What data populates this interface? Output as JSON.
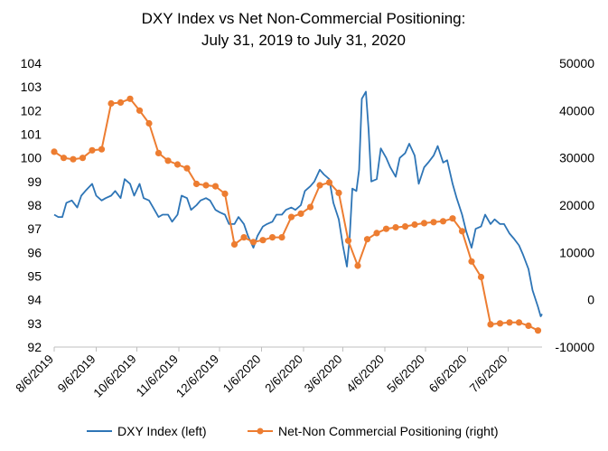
{
  "chart_data": {
    "type": "line",
    "title_line1": "DXY Index vs Net Non-Commercial Positioning:",
    "title_line2": "July 31, 2019 to July 31, 2020",
    "left_axis": {
      "ticks": [
        "104",
        "103",
        "102",
        "101",
        "100",
        "99",
        "98",
        "97",
        "96",
        "95",
        "94",
        "93",
        "92"
      ],
      "ylim": [
        92,
        104
      ]
    },
    "right_axis": {
      "ticks": [
        "50000",
        "40000",
        "30000",
        "20000",
        "10000",
        "0",
        "-10000"
      ],
      "ylim": [
        -10000,
        50000
      ]
    },
    "x_tick_labels": [
      "8/6/2019",
      "9/6/2019",
      "10/6/2019",
      "11/6/2019",
      "12/6/2019",
      "1/6/2020",
      "2/6/2020",
      "3/6/2020",
      "4/6/2020",
      "5/6/2020",
      "6/6/2020",
      "7/6/2020"
    ],
    "x_range": [
      "2019-08-06",
      "2020-07-31"
    ],
    "colors": {
      "dxy": "#2e75b6",
      "positioning": "#ed7d31"
    },
    "series": [
      {
        "name": "DXY Index (left)",
        "axis": "left",
        "x": [
          "2019-08-06",
          "2019-08-09",
          "2019-08-12",
          "2019-08-15",
          "2019-08-19",
          "2019-08-23",
          "2019-08-26",
          "2019-08-29",
          "2019-09-03",
          "2019-09-06",
          "2019-09-10",
          "2019-09-13",
          "2019-09-17",
          "2019-09-20",
          "2019-09-24",
          "2019-09-27",
          "2019-10-01",
          "2019-10-04",
          "2019-10-08",
          "2019-10-11",
          "2019-10-15",
          "2019-10-18",
          "2019-10-22",
          "2019-10-25",
          "2019-10-29",
          "2019-11-01",
          "2019-11-05",
          "2019-11-08",
          "2019-11-12",
          "2019-11-15",
          "2019-11-19",
          "2019-11-22",
          "2019-11-26",
          "2019-11-29",
          "2019-12-03",
          "2019-12-06",
          "2019-12-10",
          "2019-12-13",
          "2019-12-17",
          "2019-12-20",
          "2019-12-24",
          "2019-12-27",
          "2019-12-31",
          "2020-01-03",
          "2020-01-07",
          "2020-01-10",
          "2020-01-14",
          "2020-01-17",
          "2020-01-21",
          "2020-01-24",
          "2020-01-28",
          "2020-01-31",
          "2020-02-04",
          "2020-02-07",
          "2020-02-11",
          "2020-02-14",
          "2020-02-18",
          "2020-02-21",
          "2020-02-25",
          "2020-02-28",
          "2020-03-03",
          "2020-03-06",
          "2020-03-09",
          "2020-03-11",
          "2020-03-13",
          "2020-03-16",
          "2020-03-18",
          "2020-03-20",
          "2020-03-23",
          "2020-03-25",
          "2020-03-27",
          "2020-03-31",
          "2020-04-03",
          "2020-04-07",
          "2020-04-10",
          "2020-04-14",
          "2020-04-17",
          "2020-04-21",
          "2020-04-24",
          "2020-04-28",
          "2020-05-01",
          "2020-05-05",
          "2020-05-08",
          "2020-05-12",
          "2020-05-15",
          "2020-05-19",
          "2020-05-22",
          "2020-05-26",
          "2020-05-29",
          "2020-06-02",
          "2020-06-05",
          "2020-06-09",
          "2020-06-12",
          "2020-06-16",
          "2020-06-19",
          "2020-06-23",
          "2020-06-26",
          "2020-06-30",
          "2020-07-03",
          "2020-07-07",
          "2020-07-10",
          "2020-07-14",
          "2020-07-17",
          "2020-07-21",
          "2020-07-24",
          "2020-07-28",
          "2020-07-30",
          "2020-07-31"
        ],
        "values": [
          97.6,
          97.5,
          97.5,
          98.1,
          98.2,
          97.9,
          98.4,
          98.6,
          98.9,
          98.4,
          98.2,
          98.3,
          98.4,
          98.6,
          98.3,
          99.1,
          98.9,
          98.4,
          98.9,
          98.3,
          98.2,
          97.9,
          97.5,
          97.6,
          97.6,
          97.3,
          97.6,
          98.4,
          98.3,
          97.8,
          98.0,
          98.2,
          98.3,
          98.2,
          97.8,
          97.7,
          97.6,
          97.2,
          97.2,
          97.5,
          97.2,
          96.7,
          96.2,
          96.7,
          97.1,
          97.2,
          97.3,
          97.6,
          97.6,
          97.8,
          97.9,
          97.8,
          98.0,
          98.6,
          98.8,
          99.0,
          99.5,
          99.3,
          99.1,
          98.1,
          97.4,
          96.3,
          95.4,
          96.6,
          98.7,
          98.6,
          99.5,
          102.5,
          102.8,
          101.2,
          99.0,
          99.1,
          100.4,
          100.0,
          99.6,
          99.2,
          100.0,
          100.2,
          100.6,
          100.1,
          98.9,
          99.6,
          99.8,
          100.1,
          100.5,
          99.8,
          99.9,
          98.9,
          98.3,
          97.6,
          96.9,
          96.2,
          97.0,
          97.1,
          97.6,
          97.2,
          97.4,
          97.2,
          97.2,
          96.8,
          96.6,
          96.3,
          95.9,
          95.3,
          94.4,
          93.7,
          93.3,
          93.4
        ]
      },
      {
        "name": "Net-Non Commercial Positioning (right)",
        "axis": "right",
        "x": [
          "2019-08-06",
          "2019-08-13",
          "2019-08-20",
          "2019-08-27",
          "2019-09-03",
          "2019-09-10",
          "2019-09-17",
          "2019-09-24",
          "2019-10-01",
          "2019-10-08",
          "2019-10-15",
          "2019-10-22",
          "2019-10-29",
          "2019-11-05",
          "2019-11-12",
          "2019-11-19",
          "2019-11-26",
          "2019-12-03",
          "2019-12-10",
          "2019-12-17",
          "2019-12-24",
          "2019-12-31",
          "2020-01-07",
          "2020-01-14",
          "2020-01-21",
          "2020-01-28",
          "2020-02-04",
          "2020-02-11",
          "2020-02-18",
          "2020-02-25",
          "2020-03-03",
          "2020-03-10",
          "2020-03-17",
          "2020-03-24",
          "2020-03-31",
          "2020-04-07",
          "2020-04-14",
          "2020-04-21",
          "2020-04-28",
          "2020-05-05",
          "2020-05-12",
          "2020-05-19",
          "2020-05-26",
          "2020-06-02",
          "2020-06-09",
          "2020-06-16",
          "2020-06-23",
          "2020-06-30",
          "2020-07-07",
          "2020-07-14",
          "2020-07-21",
          "2020-07-28"
        ],
        "values": [
          31300,
          30000,
          29700,
          30000,
          31600,
          31800,
          41500,
          41700,
          42500,
          40000,
          37300,
          31000,
          29400,
          28600,
          27800,
          24500,
          24200,
          24000,
          22400,
          11700,
          13200,
          12200,
          12600,
          13200,
          13200,
          17500,
          18200,
          19600,
          24200,
          24800,
          22600,
          12500,
          7200,
          12800,
          14100,
          15000,
          15300,
          15500,
          15900,
          16200,
          16400,
          16600,
          17200,
          14500,
          8100,
          4800,
          -5200,
          -5000,
          -4800,
          -4800,
          -5500,
          -6500
        ]
      }
    ],
    "legend": {
      "placement": "bottom",
      "dxy_label": "DXY Index (left)",
      "pos_label": "Net-Non Commercial Positioning (right)"
    },
    "grid": false
  }
}
